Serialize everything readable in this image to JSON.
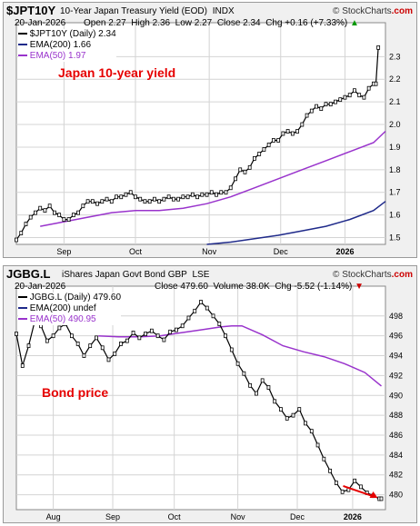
{
  "credit_prefix": "© StockCharts",
  "credit_suffix": ".com",
  "chart_data": [
    {
      "type": "line",
      "ticker": "$JPT10Y",
      "title": "10-Year Japan Treasury Yield (EOD)",
      "exchange": "INDX",
      "date": "20-Jan-2026",
      "quote": {
        "open": "Open 2.27",
        "high": "High 2.36",
        "low": "Low 2.27",
        "close": "Close 2.34",
        "chg": "Chg +0.16 (+7.33%)",
        "arrow": "▲"
      },
      "legend": [
        "$JPT10Y (Daily) 2.34",
        "EMA(200) 1.66",
        "EMA(50) 1.97"
      ],
      "annotation": "Japan 10-year yield",
      "ylim": [
        1.47,
        2.45
      ],
      "yticks": [
        "1.5",
        "1.6",
        "1.7",
        "1.8",
        "1.9",
        "2.0",
        "2.1",
        "2.2",
        "2.3"
      ],
      "xlabels": [
        {
          "label": "Sep",
          "x": 20
        },
        {
          "label": "Oct",
          "x": 50
        },
        {
          "label": "Nov",
          "x": 81
        },
        {
          "label": "Dec",
          "x": 111
        },
        {
          "label": "2026",
          "x": 138
        }
      ],
      "xlim": [
        0,
        155
      ],
      "colors": {
        "price": "#000000",
        "ema200": "#1f2a8a",
        "ema50": "#9933cc"
      },
      "series": [
        {
          "role": "price",
          "x": [
            0,
            2,
            4,
            6,
            8,
            10,
            12,
            14,
            16,
            18,
            20,
            22,
            24,
            26,
            28,
            30,
            32,
            34,
            36,
            38,
            40,
            42,
            44,
            46,
            48,
            50,
            52,
            54,
            56,
            58,
            60,
            62,
            64,
            66,
            68,
            70,
            72,
            74,
            76,
            78,
            80,
            82,
            84,
            86,
            88,
            90,
            92,
            94,
            96,
            98,
            100,
            102,
            104,
            106,
            108,
            110,
            112,
            114,
            116,
            118,
            120,
            122,
            124,
            126,
            128,
            130,
            132,
            134,
            136,
            138,
            140,
            142,
            144,
            146,
            148,
            150,
            151,
            152
          ],
          "values": [
            1.49,
            1.52,
            1.56,
            1.59,
            1.61,
            1.63,
            1.62,
            1.64,
            1.61,
            1.6,
            1.58,
            1.58,
            1.6,
            1.61,
            1.64,
            1.66,
            1.66,
            1.65,
            1.66,
            1.67,
            1.66,
            1.68,
            1.68,
            1.69,
            1.7,
            1.68,
            1.67,
            1.66,
            1.66,
            1.67,
            1.66,
            1.67,
            1.68,
            1.67,
            1.67,
            1.68,
            1.68,
            1.69,
            1.68,
            1.69,
            1.69,
            1.7,
            1.69,
            1.7,
            1.7,
            1.72,
            1.76,
            1.8,
            1.79,
            1.81,
            1.85,
            1.87,
            1.89,
            1.91,
            1.93,
            1.93,
            1.96,
            1.97,
            1.96,
            1.97,
            2.0,
            2.04,
            2.06,
            2.08,
            2.07,
            2.09,
            2.09,
            2.1,
            2.11,
            2.12,
            2.13,
            2.15,
            2.13,
            2.12,
            2.16,
            2.18,
            2.18,
            2.34
          ]
        },
        {
          "role": "ema200",
          "x": [
            80,
            90,
            100,
            110,
            120,
            130,
            140,
            150,
            155
          ],
          "values": [
            1.47,
            1.48,
            1.495,
            1.51,
            1.53,
            1.55,
            1.58,
            1.62,
            1.66
          ]
        },
        {
          "role": "ema50",
          "x": [
            10,
            20,
            30,
            40,
            50,
            60,
            70,
            80,
            90,
            100,
            110,
            120,
            130,
            140,
            150,
            155
          ],
          "values": [
            1.55,
            1.57,
            1.59,
            1.61,
            1.62,
            1.62,
            1.63,
            1.65,
            1.68,
            1.72,
            1.76,
            1.8,
            1.84,
            1.88,
            1.92,
            1.97
          ]
        }
      ]
    },
    {
      "type": "line",
      "ticker": "JGBG.L",
      "title": "iShares Japan Govt Bond GBP",
      "exchange": "LSE",
      "date": "20-Jan-2026",
      "quote": {
        "close": "Close 479.60",
        "volume": "Volume 38.0K",
        "chg": "Chg -5.52 (-1.14%)",
        "arrow": "▼"
      },
      "legend": [
        "JGBG.L (Daily) 479.60",
        "EMA(200) undef",
        "EMA(50) 490.95"
      ],
      "annotation": "Bond price",
      "ylim": [
        478.5,
        501
      ],
      "yticks": [
        "480",
        "482",
        "484",
        "486",
        "488",
        "490",
        "492",
        "494",
        "496",
        "498"
      ],
      "xlabels": [
        {
          "label": "Aug",
          "x": 18
        },
        {
          "label": "Sep",
          "x": 47
        },
        {
          "label": "Oct",
          "x": 77
        },
        {
          "label": "Nov",
          "x": 108
        },
        {
          "label": "Dec",
          "x": 137
        },
        {
          "label": "2026",
          "x": 164
        }
      ],
      "xlim": [
        0,
        180
      ],
      "colors": {
        "price": "#000000",
        "ema50": "#9933cc"
      },
      "series": [
        {
          "role": "price",
          "x": [
            0,
            3,
            6,
            9,
            12,
            15,
            18,
            21,
            24,
            27,
            30,
            33,
            36,
            39,
            42,
            45,
            48,
            51,
            54,
            57,
            60,
            63,
            66,
            69,
            72,
            75,
            78,
            81,
            84,
            87,
            90,
            93,
            96,
            99,
            102,
            105,
            108,
            111,
            114,
            117,
            120,
            123,
            126,
            129,
            132,
            135,
            138,
            141,
            144,
            147,
            150,
            153,
            156,
            159,
            162,
            165,
            168,
            171,
            174,
            177,
            178
          ],
          "values": [
            496.2,
            493.0,
            495.0,
            497.5,
            497.0,
            495.5,
            496.0,
            496.8,
            497.2,
            496.0,
            495.2,
            494.0,
            495.0,
            495.8,
            494.8,
            493.6,
            494.2,
            495.2,
            495.5,
            496.3,
            495.8,
            496.2,
            496.5,
            496.0,
            495.6,
            496.4,
            496.6,
            497.0,
            497.8,
            498.5,
            499.4,
            498.8,
            498.0,
            497.2,
            496.0,
            494.6,
            493.2,
            492.2,
            491.0,
            490.2,
            491.5,
            490.8,
            489.4,
            488.6,
            487.7,
            488.0,
            488.6,
            487.2,
            486.4,
            485.0,
            483.6,
            482.4,
            481.2,
            480.3,
            480.5,
            481.4,
            480.8,
            480.2,
            479.9,
            479.6,
            479.6
          ]
        },
        {
          "role": "ema50",
          "x": [
            40,
            50,
            60,
            70,
            80,
            90,
            100,
            105,
            110,
            120,
            130,
            140,
            150,
            160,
            170,
            178
          ],
          "values": [
            496.0,
            495.9,
            495.9,
            496.0,
            496.3,
            496.6,
            496.9,
            497.0,
            497.0,
            496.1,
            495.0,
            494.4,
            493.9,
            493.2,
            492.3,
            490.95
          ]
        }
      ]
    }
  ]
}
